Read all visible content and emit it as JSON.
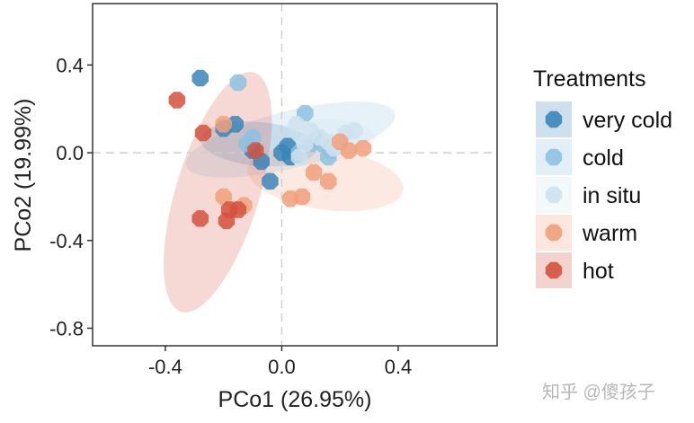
{
  "chart_data": {
    "type": "scatter",
    "title": "",
    "xlabel": "PCo1 (26.95%)",
    "ylabel": "PCo2 (19.99%)",
    "xlim": [
      -0.65,
      0.74
    ],
    "ylim": [
      -0.88,
      0.68
    ],
    "x_ticks": [
      -0.4,
      0.0,
      0.4
    ],
    "y_ticks": [
      -0.8,
      -0.4,
      0.0,
      0.4
    ],
    "x_tick_labels": [
      "-0.4",
      "0.0",
      "0.4"
    ],
    "y_tick_labels": [
      "-0.8",
      "-0.4",
      "0.0",
      "0.4"
    ],
    "reference_lines": {
      "x": 0,
      "y": 0
    },
    "grid": false,
    "legend_title": "Treatments",
    "legend_position": "right",
    "series": [
      {
        "name": "very cold",
        "color": "#3a85b8",
        "ellipse": {
          "center": [
            -0.08,
            0.04
          ],
          "semi_axes": [
            0.2,
            0.1
          ],
          "angle_deg": -5
        },
        "points": [
          [
            -0.28,
            0.34
          ],
          [
            -0.16,
            0.13
          ],
          [
            -0.2,
            0.11
          ],
          [
            -0.1,
            0.01
          ],
          [
            -0.07,
            -0.04
          ],
          [
            -0.04,
            -0.13
          ],
          [
            0.0,
            0.0
          ],
          [
            0.03,
            -0.02
          ],
          [
            0.02,
            0.03
          ],
          [
            0.05,
            -0.01
          ]
        ]
      },
      {
        "name": "cold",
        "color": "#8dc1e0",
        "ellipse": {
          "center": [
            0.03,
            0.06
          ],
          "semi_axes": [
            0.37,
            0.13
          ],
          "angle_deg": 14
        },
        "points": [
          [
            -0.15,
            0.32
          ],
          [
            -0.1,
            0.07
          ],
          [
            0.08,
            0.18
          ],
          [
            0.1,
            0.04
          ],
          [
            0.14,
            0.04
          ],
          [
            0.06,
            0.0
          ],
          [
            0.17,
            0.01
          ],
          [
            -0.12,
            0.04
          ],
          [
            0.12,
            0.06
          ],
          [
            0.16,
            -0.02
          ]
        ]
      },
      {
        "name": "in situ",
        "color": "#cfe2ee",
        "ellipse": {
          "center": [
            0.12,
            0.05
          ],
          "semi_axes": [
            0.2,
            0.1
          ],
          "angle_deg": 5
        },
        "points": [
          [
            0.05,
            0.13
          ],
          [
            0.1,
            0.1
          ],
          [
            0.16,
            0.05
          ],
          [
            0.22,
            0.09
          ],
          [
            0.25,
            0.1
          ],
          [
            0.08,
            0.04
          ],
          [
            0.13,
            0.07
          ],
          [
            0.2,
            0.03
          ],
          [
            0.06,
            -0.02
          ],
          [
            0.18,
            0.02
          ]
        ]
      },
      {
        "name": "warm",
        "color": "#f0a07a",
        "ellipse": {
          "center": [
            0.15,
            -0.12
          ],
          "semi_axes": [
            0.27,
            0.14
          ],
          "angle_deg": -8
        },
        "points": [
          [
            -0.2,
            -0.2
          ],
          [
            -0.13,
            -0.24
          ],
          [
            0.03,
            -0.21
          ],
          [
            0.07,
            -0.2
          ],
          [
            0.16,
            -0.13
          ],
          [
            0.11,
            -0.09
          ],
          [
            0.23,
            0.01
          ],
          [
            0.28,
            0.02
          ],
          [
            0.2,
            0.05
          ],
          [
            -0.2,
            0.13
          ]
        ]
      },
      {
        "name": "hot",
        "color": "#d4513d",
        "ellipse": {
          "center": [
            -0.22,
            -0.18
          ],
          "semi_axes": [
            0.43,
            0.19
          ],
          "angle_deg": 73
        },
        "points": [
          [
            -0.36,
            0.24
          ],
          [
            -0.27,
            0.09
          ],
          [
            -0.18,
            -0.26
          ],
          [
            -0.15,
            -0.26
          ],
          [
            -0.19,
            -0.31
          ],
          [
            -0.28,
            -0.3
          ],
          [
            -0.09,
            0.01
          ]
        ]
      }
    ]
  },
  "watermark_text": "知乎 @傻孩子"
}
